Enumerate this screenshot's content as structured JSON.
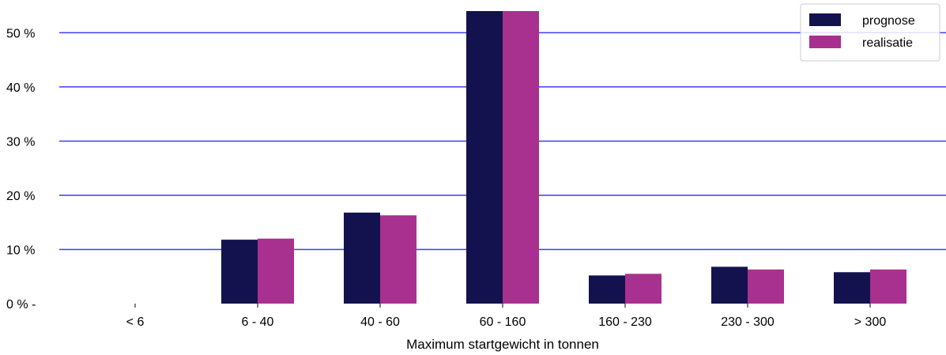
{
  "chart_data": {
    "type": "bar",
    "title": "",
    "xlabel": "Maximum startgewicht in tonnen",
    "ylabel": "",
    "categories": [
      "< 6",
      "6 - 40",
      "40 - 60",
      "60 - 160",
      "160 - 230",
      "230 - 300",
      "> 300"
    ],
    "series": [
      {
        "name": "prognose",
        "color": "#13124f",
        "values": [
          0,
          11.8,
          16.8,
          54.0,
          5.2,
          6.8,
          5.8
        ]
      },
      {
        "name": "realisatie",
        "color": "#a8308f",
        "values": [
          0,
          12.0,
          16.3,
          54.0,
          5.5,
          6.3,
          6.3
        ]
      }
    ],
    "ylim": [
      0,
      54
    ],
    "yticks": [
      0,
      10,
      20,
      30,
      40,
      50
    ],
    "ytick_labels": [
      "0 % -",
      "10 %",
      "20 %",
      "30 %",
      "40 %",
      "50 %"
    ],
    "grid": {
      "axis": "y",
      "color": "#3b3bff"
    },
    "legend_position": "top-right"
  }
}
